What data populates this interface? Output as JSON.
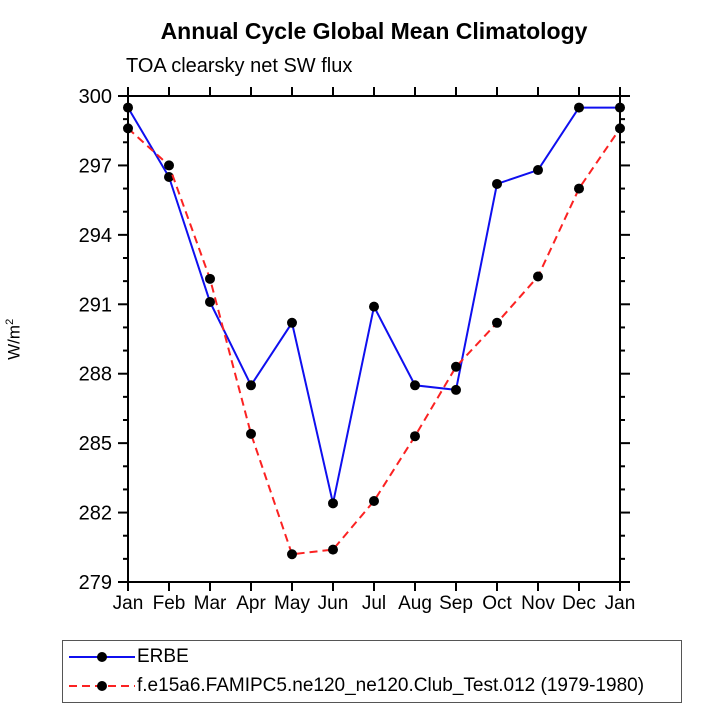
{
  "header": {
    "title": "Annual Cycle Global Mean Climatology",
    "subtitle": "TOA clearsky net SW flux"
  },
  "chart_data": {
    "type": "line",
    "title": "Annual Cycle Global Mean Climatology",
    "subtitle": "TOA clearsky net SW flux",
    "ylabel": "W/m²",
    "xlabel": "",
    "categories": [
      "Jan",
      "Feb",
      "Mar",
      "Apr",
      "May",
      "Jun",
      "Jul",
      "Aug",
      "Sep",
      "Oct",
      "Nov",
      "Dec",
      "Jan"
    ],
    "ylim": [
      279,
      300
    ],
    "ytick_major_step": 3,
    "ytick_minor_step": 1,
    "grid": false,
    "legend_position": "bottom-left-box",
    "frame_color": "#000000",
    "marker": "filled-circle",
    "marker_color": "#000000",
    "series": [
      {
        "name": "ERBE",
        "color": "#0f0fef",
        "line_style": "solid",
        "values": [
          299.5,
          296.5,
          291.1,
          287.5,
          290.2,
          282.4,
          290.9,
          287.5,
          287.3,
          296.2,
          296.8,
          299.5,
          299.5
        ]
      },
      {
        "name": "f.e15a6.FAMIPC5.ne120_ne120.Club_Test.012 (1979-1980)",
        "color": "#fb2222",
        "line_style": "dashed",
        "values": [
          298.6,
          297.0,
          292.1,
          285.4,
          280.2,
          280.4,
          282.5,
          285.3,
          288.3,
          290.2,
          292.2,
          296.0,
          298.6
        ]
      }
    ]
  }
}
